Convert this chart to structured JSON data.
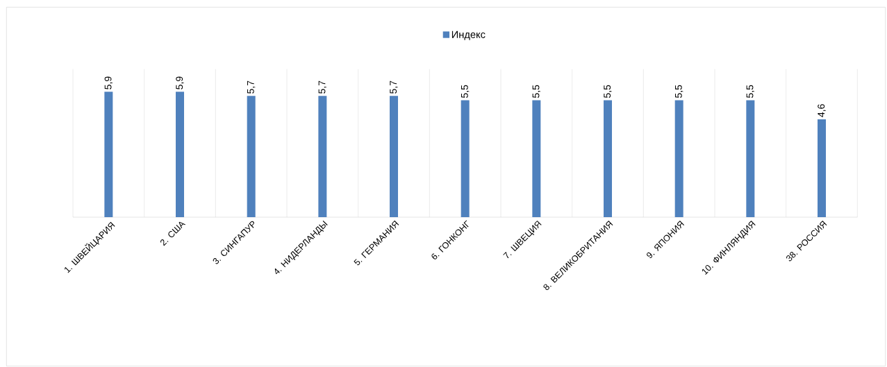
{
  "chart_data": {
    "type": "bar",
    "categories": [
      "1. ШВЕЙЦАРИЯ",
      "2. США",
      "3. СИНГАПУР",
      "4. НИДЕРЛАНДЫ",
      "5. ГЕРМАНИЯ",
      "6. ГОНКОНГ",
      "7. ШВЕЦИЯ",
      "8. ВЕЛИКОБРИТАНИЯ",
      "9. ЯПОНИЯ",
      "10. ФИНЛЯНДИЯ",
      "38. РОССИЯ"
    ],
    "series": [
      {
        "name": "Индекс",
        "color": "#4f81bd",
        "values": [
          5.9,
          5.9,
          5.7,
          5.7,
          5.7,
          5.5,
          5.5,
          5.5,
          5.5,
          5.5,
          4.6
        ],
        "value_labels": [
          "5,9",
          "5,9",
          "5,7",
          "5,7",
          "5,7",
          "5,5",
          "5,5",
          "5,5",
          "5,5",
          "5,5",
          "4,6"
        ]
      }
    ],
    "legend": "top",
    "grid": "x"
  }
}
